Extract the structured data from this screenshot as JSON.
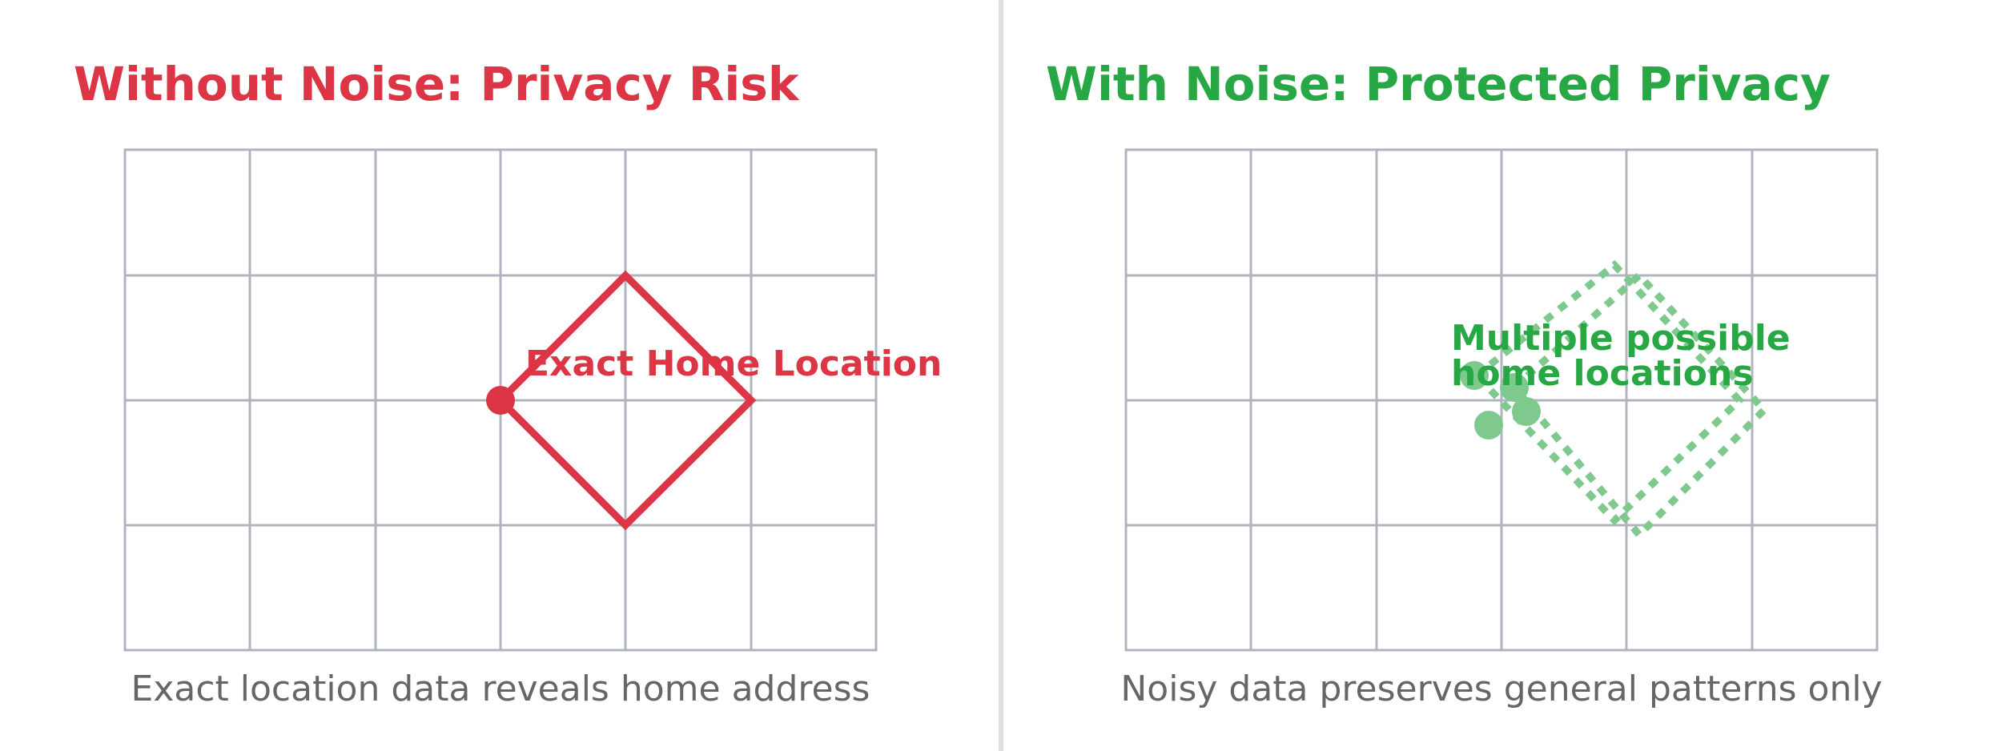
{
  "colors": {
    "risk": "#dc3545",
    "protected": "#28a745",
    "protected_light": "#7fc98f",
    "grid": "#b0b4bf",
    "caption": "#666666",
    "divider": "#e0e0e0"
  },
  "left_panel": {
    "title": "Without Noise: Privacy Risk",
    "annotation": "Exact Home Location",
    "caption": "Exact location data reveals home address"
  },
  "right_panel": {
    "title": "With Noise: Protected Privacy",
    "annotation_line1": "Multiple possible",
    "annotation_line2": "home locations",
    "caption": "Noisy data preserves general patterns only"
  }
}
